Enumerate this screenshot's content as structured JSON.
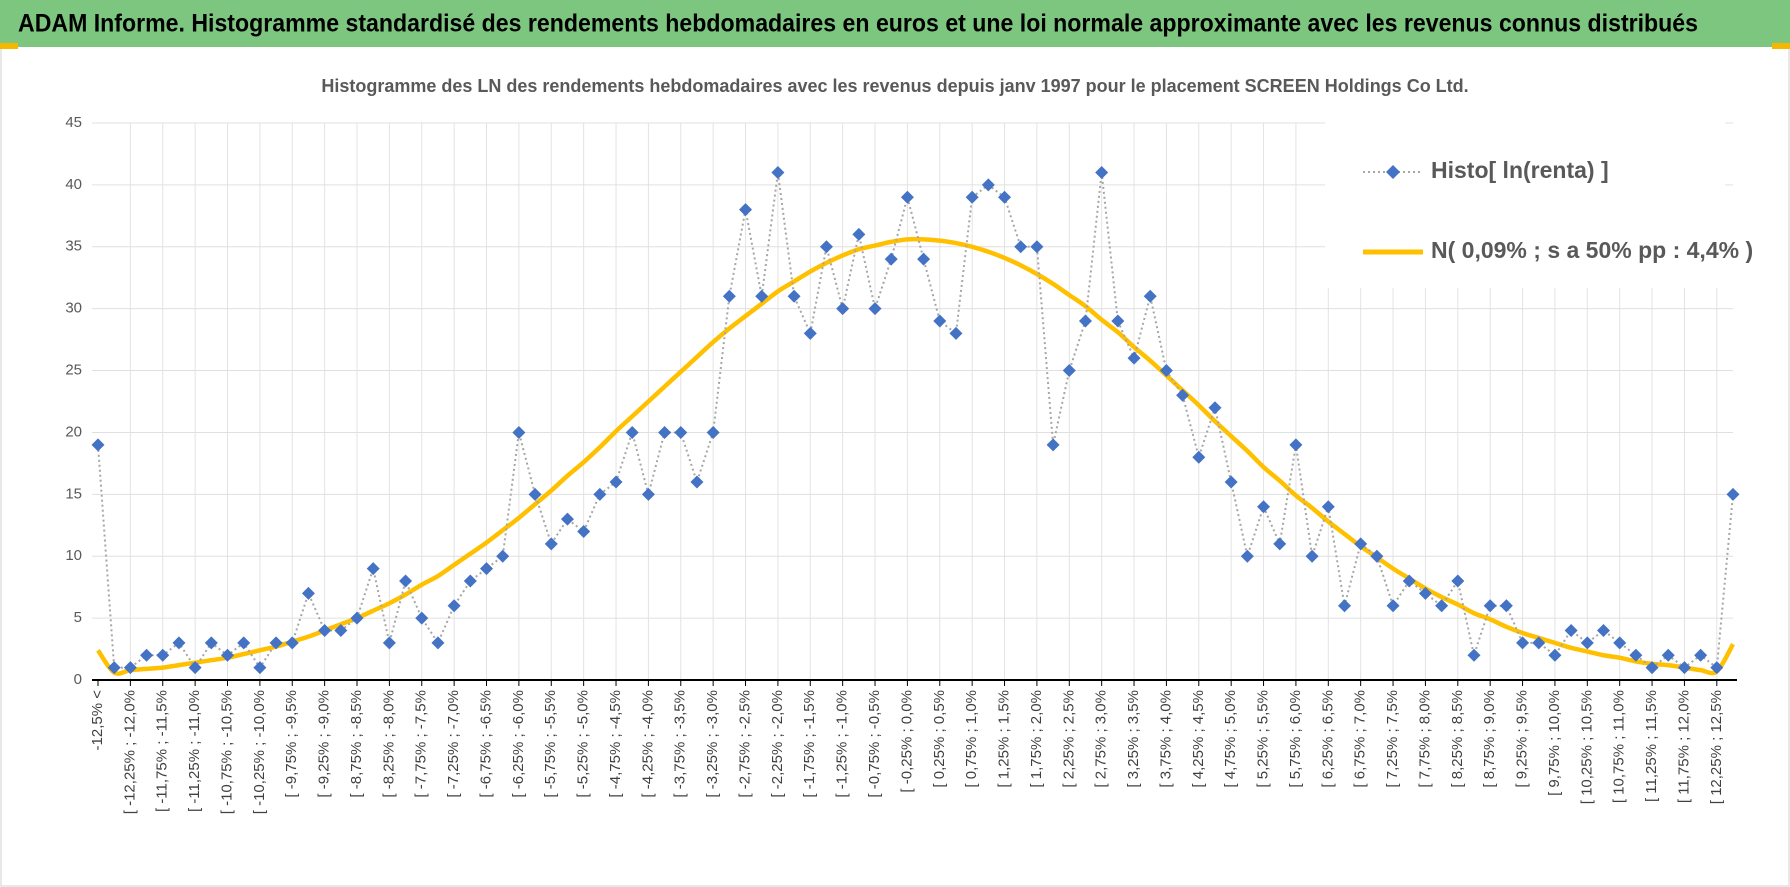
{
  "header": {
    "title": "ADAM Informe. Histogramme standardisé des rendements hebdomadaires en euros et une loi normale approximante avec les revenus connus distribués"
  },
  "chart_data": {
    "type": "line",
    "title": "Histogramme des LN des rendements hebdomadaires avec les revenus depuis janv 1997 pour le placement SCREEN Holdings Co Ltd.",
    "categories": [
      "-12,5% <",
      null,
      "[ -12,25% ; -12,0%",
      null,
      "[ -11,75% ; -11,5%",
      null,
      "[ -11,25% ; -11,0%",
      null,
      "[ -10,75% ; -10,5%",
      null,
      "[ -10,25% ; -10,0%",
      null,
      "[ -9,75% ; -9,5%",
      null,
      "[ -9,25% ; -9,0%",
      null,
      "[ -8,75% ; -8,5%",
      null,
      "[ -8,25% ; -8,0%",
      null,
      "[ -7,75% ; -7,5%",
      null,
      "[ -7,25% ; -7,0%",
      null,
      "[ -6,75% ; -6,5%",
      null,
      "[ -6,25% ; -6,0%",
      null,
      "[ -5,75% ; -5,5%",
      null,
      "[ -5,25% ; -5,0%",
      null,
      "[ -4,75% ; -4,5%",
      null,
      "[ -4,25% ; -4,0%",
      null,
      "[ -3,75% ; -3,5%",
      null,
      "[ -3,25% ; -3,0%",
      null,
      "[ -2,75% ; -2,5%",
      null,
      "[ -2,25% ; -2,0%",
      null,
      "[ -1,75% ; -1,5%",
      null,
      "[ -1,25% ; -1,0%",
      null,
      "[ -0,75% ; -0,5%",
      null,
      "[ -0,25% ; 0,0%",
      null,
      "[ 0,25% ; 0,5%",
      null,
      "[ 0,75% ; 1,0%",
      null,
      "[ 1,25% ; 1,5%",
      null,
      "[ 1,75% ; 2,0%",
      null,
      "[ 2,25% ; 2,5%",
      null,
      "[ 2,75% ; 3,0%",
      null,
      "[ 3,25% ; 3,5%",
      null,
      "[ 3,75% ; 4,0%",
      null,
      "[ 4,25% ; 4,5%",
      null,
      "[ 4,75% ; 5,0%",
      null,
      "[ 5,25% ; 5,5%",
      null,
      "[ 5,75% ; 6,0%",
      null,
      "[ 6,25% ; 6,5%",
      null,
      "[ 6,75% ; 7,0%",
      null,
      "[ 7,25% ; 7,5%",
      null,
      "[ 7,75% ; 8,0%",
      null,
      "[ 8,25% ; 8,5%",
      null,
      "[ 8,75% ; 9,0%",
      null,
      "[ 9,25% ; 9,5%",
      null,
      "[ 9,75% ; 10,0%",
      null,
      "[ 10,25% ; 10,5%",
      null,
      "[ 10,75% ; 11,0%",
      null,
      "[ 11,25% ; 11,5%",
      null,
      "[ 11,75% ; 12,0%",
      null,
      "[ 12,25% ; 12,5%",
      null
    ],
    "series": [
      {
        "name": "Histo[ ln(renta) ]",
        "color": "#4472c4",
        "values": [
          19,
          1,
          1,
          2,
          2,
          3,
          1,
          3,
          2,
          3,
          1,
          3,
          3,
          7,
          4,
          4,
          5,
          9,
          3,
          8,
          5,
          3,
          6,
          8,
          9,
          10,
          20,
          15,
          11,
          13,
          12,
          15,
          16,
          20,
          15,
          20,
          20,
          16,
          20,
          31,
          38,
          31,
          41,
          31,
          28,
          35,
          30,
          36,
          30,
          34,
          39,
          34,
          29,
          28,
          39,
          40,
          39,
          35,
          35,
          19,
          25,
          29,
          41,
          29,
          26,
          31,
          25,
          23,
          18,
          22,
          16,
          10,
          14,
          11,
          19,
          10,
          14,
          6,
          11,
          10,
          6,
          8,
          7,
          6,
          8,
          2,
          6,
          6,
          3,
          3,
          2,
          4,
          3,
          4,
          3,
          2,
          1,
          2,
          1,
          2,
          1,
          15
        ]
      },
      {
        "name": "N( 0,09% ; s a 50% pp : 4,4% )",
        "color": "#ffc000",
        "values": [
          2.4,
          0.6,
          0.8,
          0.9,
          1.0,
          1.2,
          1.4,
          1.6,
          1.8,
          2.1,
          2.4,
          2.7,
          3.1,
          3.5,
          4.0,
          4.5,
          5.0,
          5.6,
          6.2,
          6.9,
          7.7,
          8.4,
          9.3,
          10.2,
          11.1,
          12.1,
          13.1,
          14.2,
          15.3,
          16.5,
          17.6,
          18.8,
          20.1,
          21.3,
          22.5,
          23.7,
          24.9,
          26.1,
          27.3,
          28.4,
          29.4,
          30.4,
          31.4,
          32.2,
          33.0,
          33.7,
          34.3,
          34.8,
          35.1,
          35.4,
          35.6,
          35.6,
          35.5,
          35.3,
          35.0,
          34.6,
          34.1,
          33.5,
          32.8,
          32.0,
          31.1,
          30.2,
          29.1,
          28.1,
          26.9,
          25.8,
          24.6,
          23.4,
          22.2,
          20.9,
          19.7,
          18.5,
          17.2,
          16.1,
          14.9,
          13.9,
          12.8,
          11.8,
          10.8,
          9.9,
          9.0,
          8.2,
          7.4,
          6.7,
          6.1,
          5.4,
          4.9,
          4.3,
          3.8,
          3.4,
          3.0,
          2.6,
          2.3,
          2.0,
          1.8,
          1.5,
          1.3,
          1.2,
          1.0,
          0.8,
          0.7,
          2.9
        ]
      }
    ],
    "ylim": [
      0,
      45
    ],
    "yticks": [
      0,
      5,
      10,
      15,
      20,
      25,
      30,
      35,
      40,
      45
    ],
    "grid": true,
    "legend": "upper right"
  }
}
